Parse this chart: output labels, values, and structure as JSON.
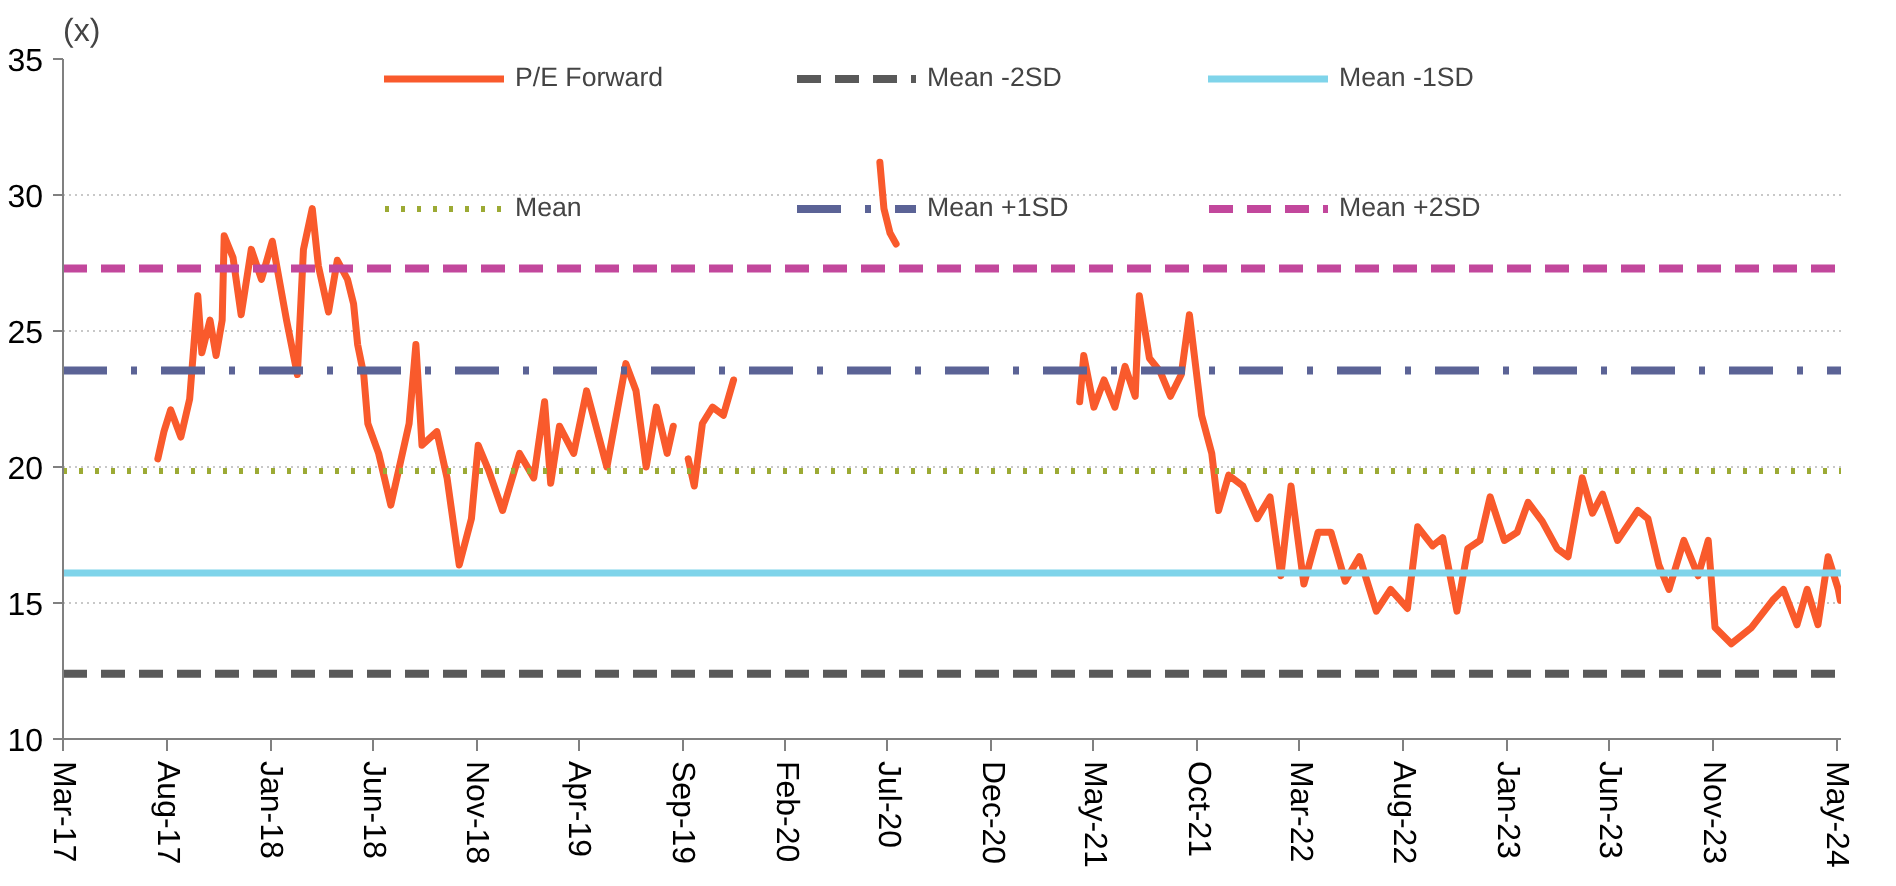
{
  "chart_data": {
    "type": "line",
    "ylabel": "(x)",
    "xlim": [
      "2017-03-01",
      "2024-05-08"
    ],
    "ylim": [
      10,
      35
    ],
    "yticks": [
      10,
      15,
      20,
      25,
      30,
      35
    ],
    "xticks": [
      {
        "value": "2017-03",
        "label": "Mar-17"
      },
      {
        "value": "2017-08",
        "label": "Aug-17"
      },
      {
        "value": "2018-01",
        "label": "Jan-18"
      },
      {
        "value": "2018-06",
        "label": "Jun-18"
      },
      {
        "value": "2018-11",
        "label": "Nov-18"
      },
      {
        "value": "2019-04",
        "label": "Apr-19"
      },
      {
        "value": "2019-09",
        "label": "Sep-19"
      },
      {
        "value": "2020-02",
        "label": "Feb-20"
      },
      {
        "value": "2020-07",
        "label": "Jul-20"
      },
      {
        "value": "2020-12",
        "label": "Dec-20"
      },
      {
        "value": "2021-05",
        "label": "May-21"
      },
      {
        "value": "2021-10",
        "label": "Oct-21"
      },
      {
        "value": "2022-03",
        "label": "Mar-22"
      },
      {
        "value": "2022-08",
        "label": "Aug-22"
      },
      {
        "value": "2023-01",
        "label": "Jan-23"
      },
      {
        "value": "2023-06",
        "label": "Jun-23"
      },
      {
        "value": "2023-11",
        "label": "Nov-23"
      },
      {
        "value": "2024-05",
        "label": "May-24"
      }
    ],
    "grid": "y",
    "legend": "top",
    "marker": "none",
    "series": [
      {
        "name": "P/E Forward",
        "color": "#f95a2c",
        "line_style": "solid",
        "x": [
          "2017-07-19",
          "2017-07-28",
          "2017-08-07",
          "2017-08-22",
          "2017-09-04",
          "2017-09-16",
          "2017-09-22",
          "2017-10-04",
          "2017-10-13",
          "2017-10-22",
          "2017-10-25",
          "2017-11-07",
          "2017-11-19",
          "2017-12-04",
          "2017-12-19",
          "2018-01-04",
          "2018-01-25",
          "2018-02-10",
          "2018-02-19",
          "2018-03-04",
          "2018-03-13",
          "2018-03-28",
          "2018-04-10",
          "2018-04-25",
          "2018-05-04",
          "2018-05-10",
          "2018-05-19",
          "2018-05-25",
          "2018-06-10",
          "2018-06-28",
          "2018-07-25",
          "2018-08-04",
          "2018-08-13",
          "2018-09-04",
          "2018-09-19",
          "2018-10-07",
          "2018-10-25",
          "2018-11-04",
          "2018-11-19",
          "2018-12-10",
          "2019-01-04",
          "2019-01-25",
          "2019-02-10",
          "2019-02-19",
          "2019-03-04",
          "2019-03-25",
          "2019-04-13",
          "2019-05-13",
          "2019-06-10",
          "2019-06-25",
          "2019-07-10",
          "2019-07-25",
          "2019-08-10",
          "2019-08-19",
          "2019-08-28",
          "2019-09-10",
          "2019-09-19",
          "2019-10-01",
          "2019-10-16",
          "2019-11-01",
          "2019-11-16",
          "2019-12-01",
          "2020-06-19",
          "2020-06-25",
          "2020-07-04",
          "2020-07-13",
          "2020-12-01",
          "2021-04-10",
          "2021-04-16",
          "2021-05-01",
          "2021-05-16",
          "2021-06-01",
          "2021-06-16",
          "2021-07-01",
          "2021-07-07",
          "2021-07-22",
          "2021-08-07",
          "2021-08-22",
          "2021-09-07",
          "2021-09-19",
          "2021-10-07",
          "2021-10-22",
          "2021-11-01",
          "2021-11-16",
          "2021-12-07",
          "2021-12-28",
          "2022-01-16",
          "2022-02-01",
          "2022-02-16",
          "2022-03-07",
          "2022-03-28",
          "2022-04-16",
          "2022-05-07",
          "2022-05-28",
          "2022-06-22",
          "2022-07-13",
          "2022-08-07",
          "2022-08-22",
          "2022-09-13",
          "2022-09-28",
          "2022-10-19",
          "2022-11-04",
          "2022-11-22",
          "2022-12-07",
          "2022-12-28",
          "2023-01-16",
          "2023-02-01",
          "2023-02-22",
          "2023-03-16",
          "2023-04-01",
          "2023-04-22",
          "2023-05-07",
          "2023-05-22",
          "2023-06-13",
          "2023-07-13",
          "2023-07-28",
          "2023-08-13",
          "2023-08-28",
          "2023-09-19",
          "2023-10-10",
          "2023-10-25",
          "2023-11-04",
          "2023-11-28",
          "2023-12-28",
          "2024-01-28",
          "2024-02-13",
          "2024-03-04",
          "2024-03-19",
          "2024-04-04",
          "2024-04-19",
          "2024-05-04",
          "2024-05-07"
        ],
        "values": [
          20.3,
          21.3,
          22.1,
          21.1,
          22.5,
          26.3,
          24.2,
          25.4,
          24.1,
          25.4,
          28.5,
          27.7,
          25.6,
          28.0,
          26.9,
          28.3,
          25.4,
          23.4,
          28.0,
          29.5,
          27.4,
          25.7,
          27.6,
          26.9,
          26.0,
          24.5,
          23.4,
          21.6,
          20.5,
          18.6,
          21.6,
          24.5,
          20.8,
          21.3,
          19.6,
          16.4,
          18.1,
          20.8,
          19.9,
          18.4,
          20.5,
          19.6,
          22.4,
          19.4,
          21.5,
          20.5,
          22.8,
          20.0,
          23.8,
          22.8,
          20.0,
          22.2,
          20.5,
          21.5,
          null,
          20.3,
          19.3,
          21.6,
          22.2,
          21.9,
          23.2,
          null,
          31.2,
          29.5,
          28.6,
          28.2,
          null,
          22.4,
          24.1,
          22.2,
          23.2,
          22.2,
          23.7,
          22.6,
          26.3,
          24.0,
          23.5,
          22.6,
          23.4,
          25.6,
          21.9,
          20.5,
          18.4,
          19.7,
          19.3,
          18.1,
          18.9,
          16.0,
          19.3,
          15.7,
          17.6,
          17.6,
          15.8,
          16.7,
          14.7,
          15.5,
          14.8,
          17.8,
          17.1,
          17.4,
          14.7,
          17.0,
          17.3,
          18.9,
          17.3,
          17.6,
          18.7,
          18.0,
          17.0,
          16.7,
          19.6,
          18.3,
          19.0,
          17.3,
          18.4,
          18.1,
          16.4,
          15.5,
          17.3,
          16.0,
          17.3,
          14.1,
          13.5,
          14.1,
          15.1,
          15.5,
          14.2,
          15.5,
          14.2,
          16.7,
          15.5,
          15.1
        ]
      },
      {
        "name": "Mean -2SD",
        "color": "#595959",
        "line_style": "dashed",
        "x": [
          "2017-03-01",
          "2024-05-08"
        ],
        "values": [
          12.4,
          12.4
        ]
      },
      {
        "name": "Mean -1SD",
        "color": "#7fd4ea",
        "line_style": "solid",
        "x": [
          "2017-03-01",
          "2024-05-08"
        ],
        "values": [
          16.1,
          16.1
        ]
      },
      {
        "name": "Mean",
        "color": "#9caa34",
        "line_style": "dotted",
        "x": [
          "2017-03-01",
          "2024-05-08"
        ],
        "values": [
          19.85,
          19.85
        ]
      },
      {
        "name": "Mean +1SD",
        "color": "#5b6396",
        "line_style": "dashdot",
        "x": [
          "2017-03-01",
          "2024-05-08"
        ],
        "values": [
          23.55,
          23.55
        ]
      },
      {
        "name": "Mean +2SD",
        "color": "#c2479c",
        "line_style": "dashed",
        "x": [
          "2017-03-01",
          "2024-05-08"
        ],
        "values": [
          27.3,
          27.3
        ]
      }
    ]
  }
}
